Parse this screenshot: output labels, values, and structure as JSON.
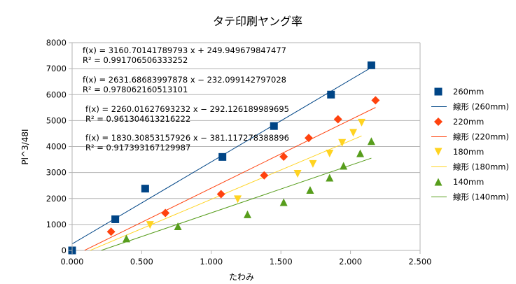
{
  "chart_data": {
    "type": "scatter",
    "title": "タテ印刷ヤング率",
    "xlabel": "たわみ",
    "ylabel": "Pl^3/48I",
    "xlim": [
      0,
      2.5
    ],
    "ylim": [
      0,
      8000
    ],
    "x_ticks": [
      "0.000",
      "0.500",
      "1.000",
      "1.500",
      "2.000",
      "2.500"
    ],
    "y_ticks": [
      "0",
      "1000",
      "2000",
      "3000",
      "4000",
      "5000",
      "6000",
      "7000",
      "8000"
    ],
    "grid": "horizontal",
    "legend_position": "right",
    "series": [
      {
        "name": "260mm",
        "marker": "square",
        "color": "#004586",
        "points": [
          [
            0.0,
            0
          ],
          [
            0.31,
            1200
          ],
          [
            0.525,
            2380
          ],
          [
            1.08,
            3600
          ],
          [
            1.45,
            4790
          ],
          [
            1.86,
            6000
          ],
          [
            2.15,
            7130
          ]
        ],
        "trendline": {
          "name": "線形 (260mm)",
          "slope": 3160.70141789793,
          "intercept": 249.949679847477,
          "x_range": [
            0.0,
            2.15
          ],
          "equation": "f(x) = 3160.70141789793 x + 249.949679847477",
          "r2": "R² = 0.991706506333252"
        }
      },
      {
        "name": "220mm",
        "marker": "diamond",
        "color": "#ff420e",
        "points": [
          [
            0.28,
            720
          ],
          [
            0.67,
            1440
          ],
          [
            1.07,
            2170
          ],
          [
            1.38,
            2890
          ],
          [
            1.52,
            3610
          ],
          [
            1.7,
            4330
          ],
          [
            1.91,
            5050
          ],
          [
            2.18,
            5780
          ]
        ],
        "trendline": {
          "name": "線形 (220mm)",
          "slope": 2631.68683997878,
          "intercept": -232.099142797028,
          "x_range": [
            0.09,
            2.18
          ],
          "equation": "f(x) = 2631.68683997878 x − 232.099142797028",
          "r2": "R² = 0.978062160513101"
        }
      },
      {
        "name": "180mm",
        "marker": "triangle-down",
        "color": "#ffd320",
        "points": [
          [
            0.56,
            980
          ],
          [
            1.19,
            1970
          ],
          [
            1.62,
            2950
          ],
          [
            1.73,
            3330
          ],
          [
            1.85,
            3730
          ],
          [
            1.94,
            4140
          ],
          [
            2.02,
            4530
          ],
          [
            2.08,
            4920
          ]
        ],
        "trendline": {
          "name": "線形 (180mm)",
          "slope": 2260.01627693232,
          "intercept": -292.126189989695,
          "x_range": [
            0.13,
            2.08
          ],
          "equation": "f(x) = 2260.01627693232 x − 292.126189989695",
          "r2": "R² = 0.961304613216222"
        }
      },
      {
        "name": "140mm",
        "marker": "triangle-up",
        "color": "#579d1c",
        "points": [
          [
            0.39,
            460
          ],
          [
            0.76,
            930
          ],
          [
            1.26,
            1390
          ],
          [
            1.52,
            1860
          ],
          [
            1.71,
            2330
          ],
          [
            1.85,
            2800
          ],
          [
            1.95,
            3260
          ],
          [
            2.07,
            3740
          ],
          [
            2.15,
            4210
          ]
        ],
        "trendline": {
          "name": "線形 (140mm)",
          "slope": 1830.30853157926,
          "intercept": -381.117278388896,
          "x_range": [
            0.21,
            2.15
          ],
          "equation": "f(x) = 1830.30853157926 x − 381.117278388896",
          "r2": "R² = 0.917393167129987"
        }
      }
    ]
  }
}
